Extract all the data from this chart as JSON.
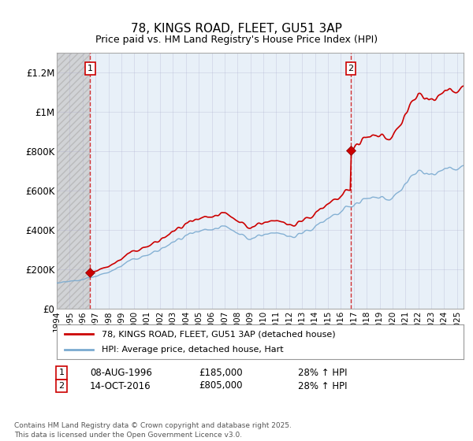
{
  "title": "78, KINGS ROAD, FLEET, GU51 3AP",
  "subtitle": "Price paid vs. HM Land Registry's House Price Index (HPI)",
  "ylim": [
    0,
    1300000
  ],
  "yticks": [
    0,
    200000,
    400000,
    600000,
    800000,
    1000000,
    1200000
  ],
  "ytick_labels": [
    "£0",
    "£200K",
    "£400K",
    "£600K",
    "£800K",
    "£1M",
    "£1.2M"
  ],
  "xlim_start": 1994.0,
  "xlim_end": 2025.5,
  "sale1_x": 1996.58,
  "sale1_y": 185000,
  "sale2_x": 2016.78,
  "sale2_y": 805000,
  "vline_color": "#cc0000",
  "hpi_color": "#7aaad0",
  "sale_line_color": "#cc0000",
  "marker_color": "#cc0000",
  "legend_label1": "78, KINGS ROAD, FLEET, GU51 3AP (detached house)",
  "legend_label2": "HPI: Average price, detached house, Hart",
  "sale1_date": "08-AUG-1996",
  "sale1_price": "£185,000",
  "sale1_hpi": "28% ↑ HPI",
  "sale2_date": "14-OCT-2016",
  "sale2_price": "£805,000",
  "sale2_hpi": "28% ↑ HPI",
  "footnote": "Contains HM Land Registry data © Crown copyright and database right 2025.\nThis data is licensed under the Open Government Licence v3.0.",
  "plot_bg_color": "#e8f0f8",
  "hatch_bg_color": "#d0d0d0"
}
